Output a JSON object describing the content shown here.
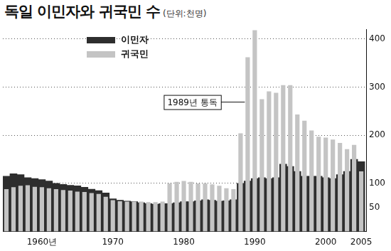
{
  "chart_data": {
    "type": "bar",
    "title": "독일 이민자와 귀국민 수",
    "subtitle": "(단위:천명)",
    "x": [
      1955,
      1956,
      1957,
      1958,
      1959,
      1960,
      1961,
      1962,
      1963,
      1964,
      1965,
      1966,
      1967,
      1968,
      1969,
      1970,
      1971,
      1972,
      1973,
      1974,
      1975,
      1976,
      1977,
      1978,
      1979,
      1980,
      1981,
      1982,
      1983,
      1984,
      1985,
      1986,
      1987,
      1988,
      1989,
      1990,
      1991,
      1992,
      1993,
      1994,
      1995,
      1996,
      1997,
      1998,
      1999,
      2000,
      2001,
      2002,
      2003,
      2004,
      2005
    ],
    "xlim": [
      1954.5,
      2005.7
    ],
    "xticks": [
      {
        "value": 1960,
        "label": "1960년"
      },
      1970,
      1980,
      1990,
      2000,
      2005
    ],
    "series": [
      {
        "name": "이민자",
        "color": "#2e2e2e",
        "values": [
          115,
          120,
          118,
          112,
          110,
          108,
          105,
          100,
          98,
          96,
          95,
          92,
          88,
          85,
          80,
          68,
          65,
          63,
          62,
          60,
          58,
          57,
          58,
          58,
          60,
          62,
          62,
          64,
          66,
          65,
          63,
          64,
          66,
          100,
          105,
          110,
          112,
          110,
          112,
          140,
          135,
          125,
          115,
          115,
          115,
          112,
          110,
          118,
          125,
          150,
          145
        ]
      },
      {
        "name": "귀국민",
        "color": "#c4c4c4",
        "values": [
          88,
          92,
          95,
          96,
          93,
          92,
          90,
          88,
          86,
          85,
          83,
          82,
          80,
          78,
          72,
          65,
          63,
          62,
          62,
          62,
          61,
          61,
          62,
          100,
          103,
          105,
          103,
          100,
          100,
          98,
          95,
          90,
          88,
          204,
          362,
          418,
          275,
          291,
          288,
          304,
          304,
          243,
          230,
          210,
          197,
          195,
          191,
          184,
          171,
          180,
          125
        ]
      }
    ],
    "ylim": [
      0,
      420
    ],
    "yticks": [
      50,
      100,
      200,
      300,
      400
    ],
    "grid": true,
    "legend": "upper left",
    "annotations": [
      {
        "text": "1989년 통독",
        "x": 1989
      }
    ]
  }
}
